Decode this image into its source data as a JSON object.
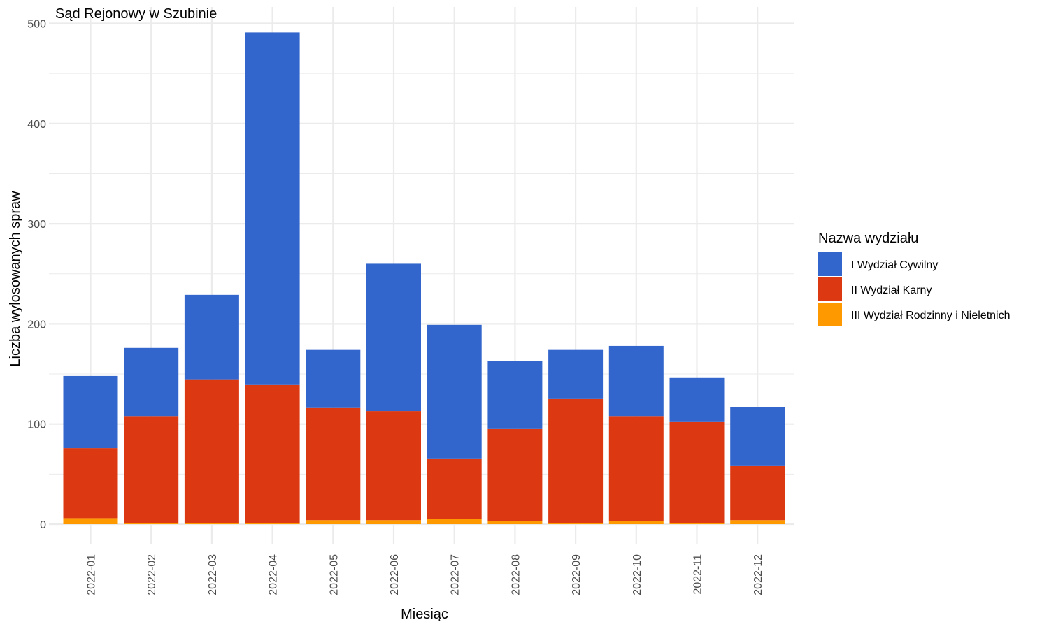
{
  "chart_data": {
    "type": "bar",
    "stacked": true,
    "title": "Sąd Rejonowy w Szubinie",
    "xlabel": "Miesiąc",
    "ylabel": "Liczba wylosowanych spraw",
    "ylim": [
      0,
      500
    ],
    "yticks": [
      0,
      100,
      200,
      300,
      400,
      500
    ],
    "grid": true,
    "legend_title": "Nazwa wydziału",
    "legend_position": "right",
    "categories": [
      "2022-01",
      "2022-02",
      "2022-03",
      "2022-04",
      "2022-05",
      "2022-06",
      "2022-07",
      "2022-08",
      "2022-09",
      "2022-10",
      "2022-11",
      "2022-12"
    ],
    "series": [
      {
        "name": "III Wydział Rodzinny i Nieletnich",
        "color": "#FF9900",
        "values": [
          6,
          1,
          1,
          1,
          4,
          4,
          5,
          3,
          1,
          3,
          1,
          4
        ]
      },
      {
        "name": "II Wydział Karny",
        "color": "#DC3912",
        "values": [
          70,
          107,
          143,
          138,
          112,
          109,
          60,
          92,
          124,
          105,
          101,
          54
        ]
      },
      {
        "name": "I Wydział Cywilny",
        "color": "#3366CC",
        "values": [
          72,
          68,
          85,
          352,
          58,
          147,
          134,
          68,
          49,
          70,
          44,
          59
        ]
      }
    ],
    "legend_order": [
      "I Wydział Cywilny",
      "II Wydział Karny",
      "III Wydział Rodzinny i Nieletnich"
    ]
  }
}
